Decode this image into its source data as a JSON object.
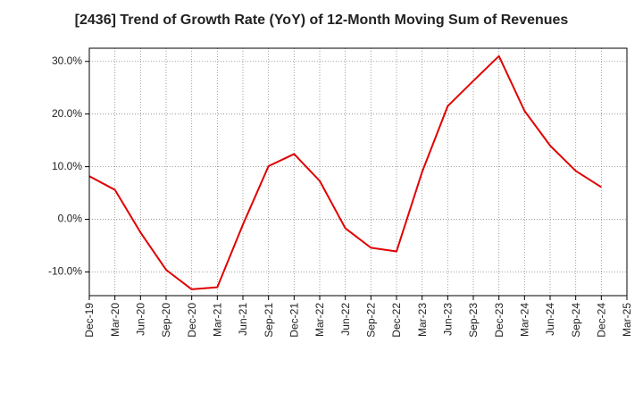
{
  "chart_data": {
    "type": "line",
    "title": "[2436]  Trend of Growth Rate (YoY) of 12-Month Moving Sum of Revenues",
    "xlabel": "",
    "ylabel": "",
    "grid": true,
    "ylim": [
      -14.5,
      32.5
    ],
    "y_ticks": [
      30,
      20,
      10,
      0,
      -10
    ],
    "y_tick_labels": [
      "30.0%",
      "20.0%",
      "10.0%",
      "0.0%",
      "-10.0%"
    ],
    "x_tick_labels": [
      "Dec-19",
      "Mar-20",
      "Jun-20",
      "Sep-20",
      "Dec-20",
      "Mar-21",
      "Jun-21",
      "Sep-21",
      "Dec-21",
      "Mar-22",
      "Jun-22",
      "Sep-22",
      "Dec-22",
      "Mar-23",
      "Jun-23",
      "Sep-23",
      "Dec-23",
      "Mar-24",
      "Jun-24",
      "Sep-24",
      "Dec-24",
      "Mar-25"
    ],
    "series": [
      {
        "color": "#e00000",
        "x": [
          "Dec-19",
          "Mar-20",
          "Jun-20",
          "Sep-20",
          "Dec-20",
          "Mar-21",
          "Jun-21",
          "Sep-21",
          "Dec-21",
          "Mar-22",
          "Jun-22",
          "Sep-22",
          "Dec-22",
          "Mar-23",
          "Jun-23",
          "Sep-23",
          "Dec-23",
          "Mar-24",
          "Jun-24",
          "Sep-24",
          "Dec-24"
        ],
        "values": [
          8.2,
          5.6,
          -2.5,
          -9.6,
          -13.3,
          -12.9,
          -1.0,
          10.1,
          12.4,
          7.3,
          -1.7,
          -5.4,
          -6.1,
          9.0,
          21.5,
          26.3,
          31.0,
          20.6,
          14.0,
          9.2,
          6.1
        ]
      }
    ]
  }
}
